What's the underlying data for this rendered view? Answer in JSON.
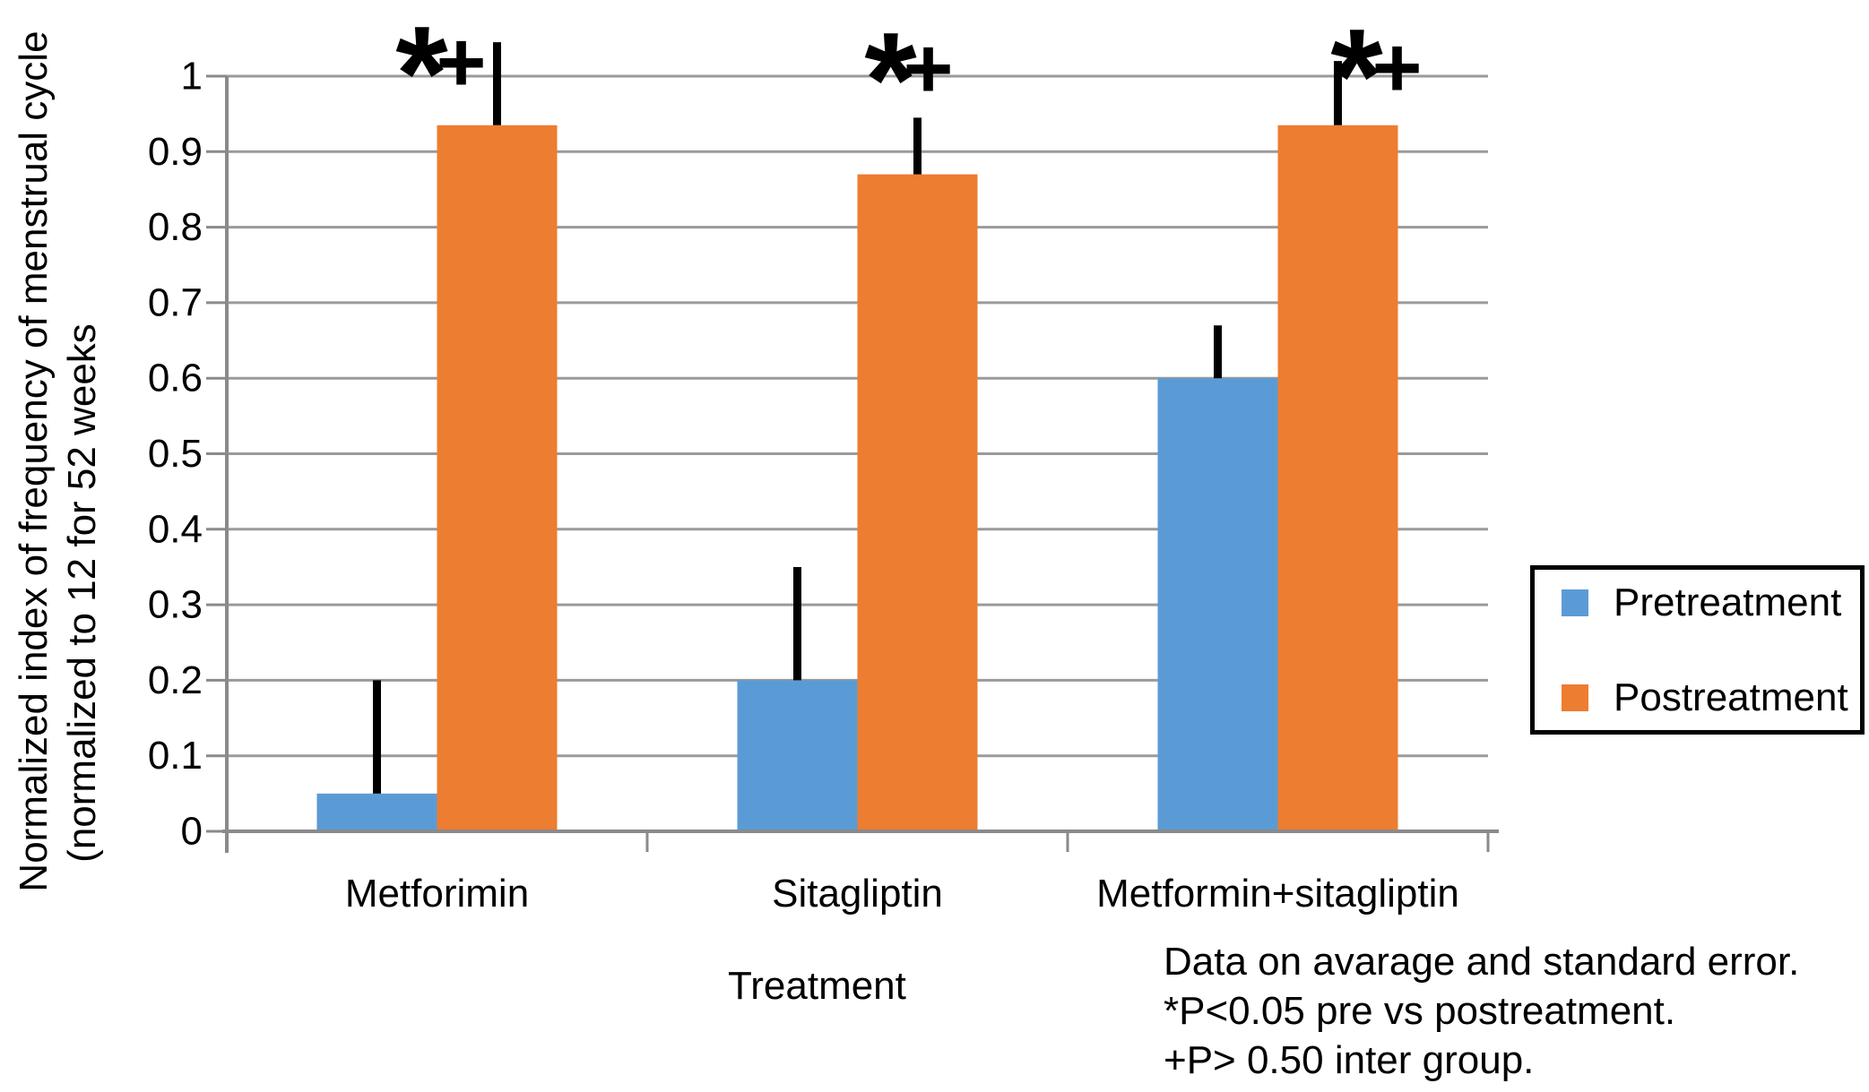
{
  "figure": {
    "background": "#ffffff",
    "notes": [
      "Data on avarage and standard error.",
      "*P<0.05 pre vs postreatment.",
      "+P> 0.50 inter group."
    ]
  },
  "chart_data": {
    "type": "bar",
    "title": "",
    "categories": [
      "Metforimin",
      "Sitagliptin",
      "Metformin+sitagliptin"
    ],
    "series": [
      {
        "name": "Pretreatment",
        "color": "#5B9BD5",
        "values": [
          0.05,
          0.2,
          0.6
        ],
        "error_upper": [
          0.15,
          0.15,
          0.07
        ]
      },
      {
        "name": "Postreatment",
        "color": "#ED7D31",
        "values": [
          0.935,
          0.87,
          0.935
        ],
        "error_upper": [
          0.11,
          0.075,
          0.085
        ]
      }
    ],
    "xlabel": "Treatment",
    "ylabel_line1": "Normalized index of frequency of menstrual cycle",
    "ylabel_line2": "(normalized to 12 for 52 weeks",
    "ylim": [
      0,
      1
    ],
    "yticks": [
      0,
      0.1,
      0.2,
      0.3,
      0.4,
      0.5,
      0.6,
      0.7,
      0.8,
      0.9,
      1
    ],
    "ytick_labels": [
      "0",
      "0.1",
      "0.2",
      "0.3",
      "0.4",
      "0.5",
      "0.6",
      "0.7",
      "0.8",
      "0.9",
      "1"
    ],
    "grid": true,
    "legend_position": "right",
    "bar_annotations": [
      {
        "category": "Metforimin",
        "symbols": "*+"
      },
      {
        "category": "Sitagliptin",
        "symbols": "*+"
      },
      {
        "category": "Metformin+sitagliptin",
        "symbols": "*+"
      }
    ],
    "annotation_symbols": {
      "star": "*",
      "plus": "+"
    },
    "gridline_color": "#9a9a9a",
    "axis_color": "#8a8a8a",
    "error_bar_color": "#000000"
  }
}
